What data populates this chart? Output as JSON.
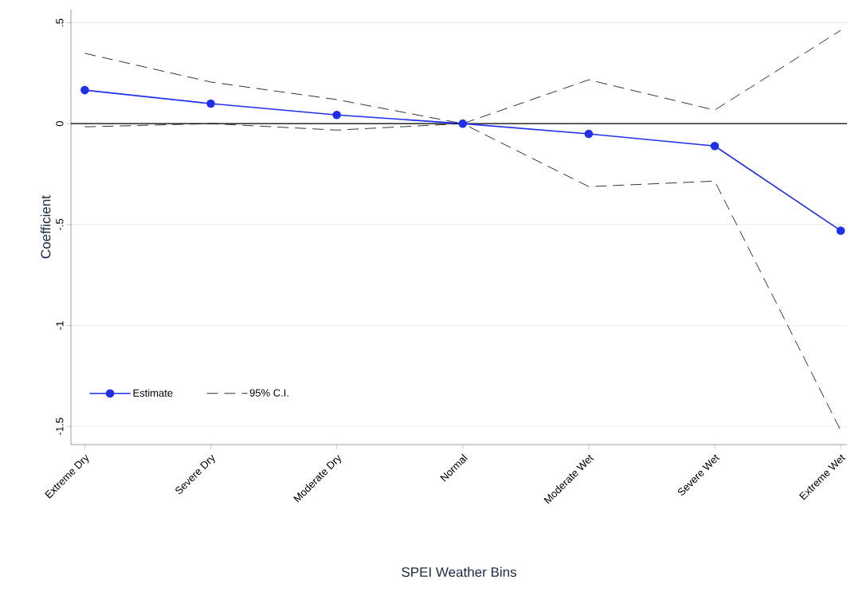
{
  "chart_data": {
    "type": "line",
    "xlabel": "SPEI Weather Bins",
    "ylabel": "Coefficient",
    "categories": [
      "Extreme Dry",
      "Severe Dry",
      "Moderate Dry",
      "Normal",
      "Moderate Wet",
      "Severe Wet",
      "Extreme Wet"
    ],
    "series": [
      {
        "name": "Estimate",
        "color": "#1f2ff0",
        "marker": "circle",
        "line_style": "solid",
        "values": [
          0.166,
          0.099,
          0.043,
          0,
          -0.051,
          -0.111,
          -0.53
        ]
      },
      {
        "name": "95% C.I.",
        "color": "#000000",
        "marker": "none",
        "line_style": "dashed",
        "values": [
          0.348,
          0.206,
          0.119,
          0,
          0.217,
          0.067,
          0.462
        ]
      },
      {
        "color": "#000000",
        "marker": "none",
        "line_style": "dashed",
        "values": [
          -0.016,
          0,
          -0.032,
          0,
          -0.312,
          -0.285,
          -1.52
        ]
      }
    ],
    "ylim": [
      -1.59,
      0.565
    ],
    "yticks": [
      {
        "value": 0.5,
        "label": ".5"
      },
      {
        "value": 0,
        "label": "0"
      },
      {
        "value": -0.5,
        "label": "-.5"
      },
      {
        "value": -1,
        "label": "-1"
      },
      {
        "value": -1.5,
        "label": "-1.5"
      }
    ],
    "grid": "y",
    "legend": "bottom left",
    "ref_lines": [
      {
        "axis": "y",
        "value": 0,
        "color": "#000000",
        "line_style": "solid"
      }
    ]
  }
}
